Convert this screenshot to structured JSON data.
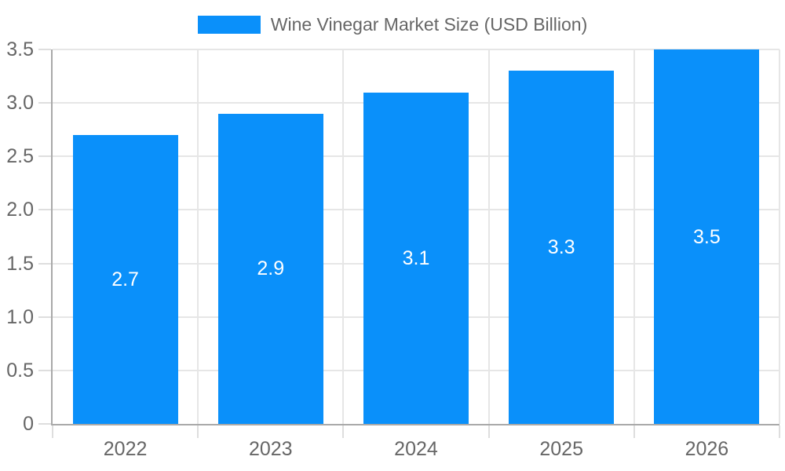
{
  "legend": {
    "label": "Wine Vinegar Market Size (USD Billion)"
  },
  "colors": {
    "bar": "#0a90fa",
    "grid": "#e6e6e6",
    "tick": "#dedede",
    "axis": "#a9a9a9",
    "text": "#666666",
    "data_label": "#ffffff",
    "background": "#ffffff"
  },
  "chart_data": {
    "type": "bar",
    "title": "Wine Vinegar Market Size (USD Billion)",
    "series_name": "Wine Vinegar Market Size (USD Billion)",
    "categories": [
      "2022",
      "2023",
      "2024",
      "2025",
      "2026"
    ],
    "values": [
      2.7,
      2.9,
      3.1,
      3.3,
      3.5
    ],
    "data_labels": [
      "2.7",
      "2.9",
      "3.1",
      "3.3",
      "3.5"
    ],
    "xlabel": "",
    "ylabel": "",
    "ylim": [
      0,
      3.5
    ],
    "ytick_step": 0.5,
    "ytick_labels": [
      "0",
      "0.5",
      "1.0",
      "1.5",
      "2.0",
      "2.5",
      "3.0",
      "3.5"
    ],
    "grid": true,
    "legend_position": "top"
  }
}
